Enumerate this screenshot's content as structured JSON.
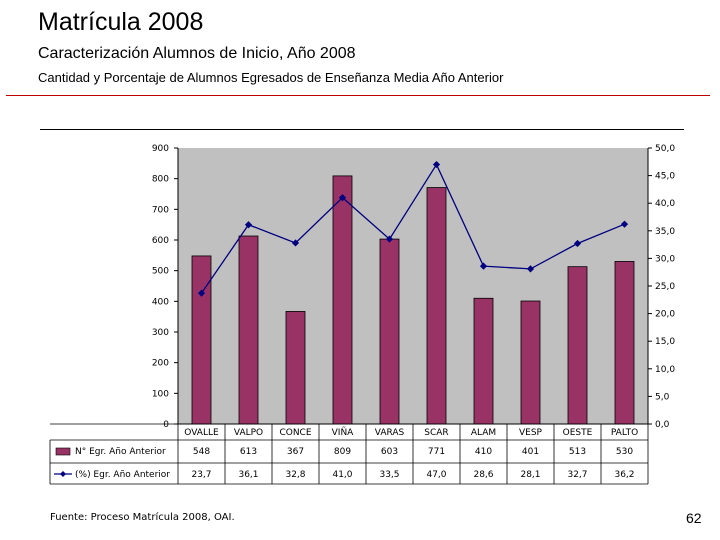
{
  "header": {
    "title": "Matrícula 2008",
    "subtitle": "Caracterización Alumnos de Inicio, Año 2008",
    "caption": "Cantidad y Porcentaje de Alumnos Egresados de Enseñanza Media Año Anterior"
  },
  "footer": {
    "source": "Fuente: Proceso Matrícula 2008, OAI.",
    "page_number": "62"
  },
  "colors": {
    "bar": "#993366",
    "line": "#000080",
    "plot_bg": "#c0c0c0"
  },
  "chart_data": {
    "type": "bar",
    "categories": [
      "OVALLE",
      "VALPO",
      "CONCE",
      "VIÑA",
      "VARAS",
      "SCAR",
      "ALAM",
      "VESP",
      "OESTE",
      "PALTO"
    ],
    "series": [
      {
        "name": "N° Egr. Año Anterior",
        "type": "bar",
        "axis": "left",
        "values": [
          548,
          613,
          367,
          809,
          603,
          771,
          410,
          401,
          513,
          530
        ],
        "labels": [
          "548",
          "613",
          "367",
          "809",
          "603",
          "771",
          "410",
          "401",
          "513",
          "530"
        ]
      },
      {
        "name": "(%) Egr. Año Anterior",
        "type": "line",
        "axis": "right",
        "values": [
          23.7,
          36.1,
          32.8,
          41.0,
          33.5,
          47.0,
          28.6,
          28.1,
          32.7,
          36.2
        ],
        "labels": [
          "23,7",
          "36,1",
          "32,8",
          "41,0",
          "33,5",
          "47,0",
          "28,6",
          "28,1",
          "32,7",
          "36,2"
        ]
      }
    ],
    "ylim": [
      0,
      900
    ],
    "y2lim": [
      0,
      50
    ],
    "yticks": [
      "0",
      "100",
      "200",
      "300",
      "400",
      "500",
      "600",
      "700",
      "800",
      "900"
    ],
    "y2ticks": [
      "0,0",
      "5,0",
      "10,0",
      "15,0",
      "20,0",
      "25,0",
      "30,0",
      "35,0",
      "40,0",
      "45,0",
      "50,0"
    ],
    "grid": false,
    "legend": "data-table-below"
  }
}
